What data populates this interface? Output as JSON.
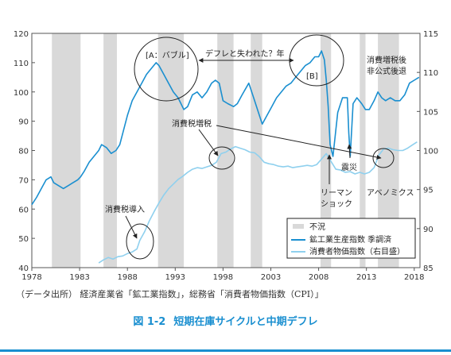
{
  "chart_data": {
    "type": "line",
    "title": "短期在庫サイクルと中期デフレ",
    "figure_number": "図 1-2",
    "source": "（データ出所） 経済産業省「鉱工業指数」，総務省「消費者物価指数（CPI）」",
    "xlim": [
      1978,
      2018.6
    ],
    "ylim_left": [
      40,
      120
    ],
    "ylim_right": [
      85,
      115
    ],
    "x_ticks": [
      1978,
      1983,
      1988,
      1993,
      1998,
      2003,
      2008,
      2013,
      2018
    ],
    "y_ticks_left": [
      40,
      50,
      60,
      70,
      80,
      90,
      100,
      110,
      120
    ],
    "y_ticks_right": [
      85,
      90,
      95,
      100,
      105,
      110,
      115
    ],
    "legend": {
      "position": "bottom-right",
      "entries": [
        "不況",
        "鉱工業生産指数 季調済",
        "消費者物価指数（右目盛）"
      ]
    },
    "recessions": [
      [
        1980.1,
        1983.1
      ],
      [
        1985.5,
        1986.9
      ],
      [
        1991.2,
        1993.9
      ],
      [
        1997.4,
        1999.1
      ],
      [
        2000.9,
        2002.1
      ],
      [
        2008.2,
        2009.3
      ],
      [
        2012.3,
        2012.9
      ],
      [
        2014.2,
        2016.4
      ]
    ],
    "series": [
      {
        "name": "鉱工業生産指数 季調済",
        "axis": "left",
        "color": "#1a8fd0",
        "x": [
          1978.0,
          1978.5,
          1979.0,
          1979.5,
          1980.0,
          1980.3,
          1980.8,
          1981.3,
          1981.8,
          1982.3,
          1982.8,
          1983.1,
          1983.5,
          1984.0,
          1984.5,
          1985.0,
          1985.3,
          1985.8,
          1986.3,
          1986.8,
          1987.2,
          1987.6,
          1988.0,
          1988.5,
          1989.0,
          1989.5,
          1990.0,
          1990.5,
          1991.0,
          1991.3,
          1991.8,
          1992.3,
          1992.8,
          1993.3,
          1993.9,
          1994.3,
          1994.8,
          1995.3,
          1995.8,
          1996.3,
          1996.8,
          1997.2,
          1997.6,
          1998.0,
          1998.5,
          1999.1,
          1999.5,
          2000.0,
          2000.7,
          2001.2,
          2001.7,
          2002.1,
          2002.6,
          2003.1,
          2003.6,
          2004.1,
          2004.6,
          2005.1,
          2005.6,
          2006.1,
          2006.6,
          2007.1,
          2007.6,
          2008.0,
          2008.3,
          2008.6,
          2008.8,
          2009.0,
          2009.2,
          2009.5,
          2010.0,
          2010.5,
          2011.0,
          2011.15,
          2011.3,
          2011.6,
          2012.0,
          2012.5,
          2012.9,
          2013.3,
          2013.8,
          2014.2,
          2014.6,
          2015.0,
          2015.5,
          2016.0,
          2016.5,
          2017.0,
          2017.5,
          2018.0,
          2018.5
        ],
        "values": [
          61.5,
          64,
          67,
          70,
          71,
          69,
          68,
          67,
          68,
          69,
          70,
          71,
          73,
          76,
          78,
          80,
          82,
          81,
          79,
          80,
          82,
          87,
          92,
          97,
          100,
          103,
          106,
          108,
          110,
          109,
          106,
          103,
          100,
          98,
          94,
          95,
          99,
          100,
          98,
          100,
          103,
          104,
          103,
          97,
          96,
          95,
          96,
          99,
          103,
          98,
          93,
          89,
          92,
          95,
          98,
          100,
          102,
          103,
          105,
          107,
          109,
          110,
          112,
          112,
          114,
          111,
          104,
          95,
          82,
          78,
          93,
          98,
          98,
          86,
          78,
          96,
          98,
          96,
          94,
          94,
          97,
          100,
          98,
          97,
          98,
          97,
          97,
          99,
          103,
          104,
          105
        ]
      },
      {
        "name": "消費者物価指数（右目盛）",
        "axis": "right",
        "color": "#8fd0ee",
        "x": [
          1985.0,
          1985.5,
          1986.0,
          1986.5,
          1987.0,
          1987.5,
          1988.0,
          1988.5,
          1989.0,
          1989.3,
          1989.8,
          1990.3,
          1990.8,
          1991.3,
          1991.8,
          1992.3,
          1992.8,
          1993.3,
          1993.8,
          1994.3,
          1994.8,
          1995.3,
          1995.8,
          1996.3,
          1996.8,
          1997.3,
          1997.8,
          1998.3,
          1998.8,
          1999.3,
          1999.8,
          2000.3,
          2000.8,
          2001.3,
          2001.8,
          2002.3,
          2002.8,
          2003.3,
          2003.8,
          2004.3,
          2004.8,
          2005.3,
          2005.8,
          2006.3,
          2006.8,
          2007.3,
          2007.8,
          2008.3,
          2008.8,
          2009.3,
          2009.8,
          2010.3,
          2010.8,
          2011.3,
          2011.8,
          2012.3,
          2012.8,
          2013.3,
          2013.8,
          2014.3,
          2014.8,
          2015.3,
          2015.8,
          2016.3,
          2016.8,
          2017.3,
          2017.8,
          2018.3
        ],
        "values": [
          85.6,
          86.0,
          86.3,
          86.1,
          86.4,
          86.5,
          86.8,
          87.0,
          87.4,
          88.5,
          89.6,
          91.0,
          92.2,
          93.3,
          94.3,
          95.1,
          95.7,
          96.3,
          96.7,
          97.2,
          97.6,
          97.8,
          97.7,
          97.9,
          98.1,
          98.5,
          99.6,
          99.8,
          100.2,
          100.5,
          100.3,
          100.1,
          99.8,
          99.7,
          99.2,
          98.5,
          98.3,
          98.2,
          98.0,
          97.9,
          98.0,
          97.8,
          97.9,
          98.0,
          98.1,
          98.0,
          98.2,
          98.9,
          99.6,
          98.6,
          97.6,
          97.5,
          97.2,
          97.3,
          97.0,
          97.2,
          97.0,
          97.2,
          97.8,
          99.4,
          100.2,
          100.3,
          100.1,
          100.0,
          100.0,
          100.3,
          100.7,
          101.1
        ]
      }
    ],
    "annotations": {
      "bubble": "[A：バブル]",
      "deflation_arrow": "デフレと失われた？年",
      "point_b": "[B]",
      "tax_after": "消費増税後",
      "unofficial": "非公式後退",
      "tax_increase": "消費税増税",
      "tax_introduced": "消費税導入",
      "quake": "震災",
      "lehman_1": "リーマン",
      "lehman_2": "ショック",
      "abenomics": "アベノミクス"
    }
  }
}
